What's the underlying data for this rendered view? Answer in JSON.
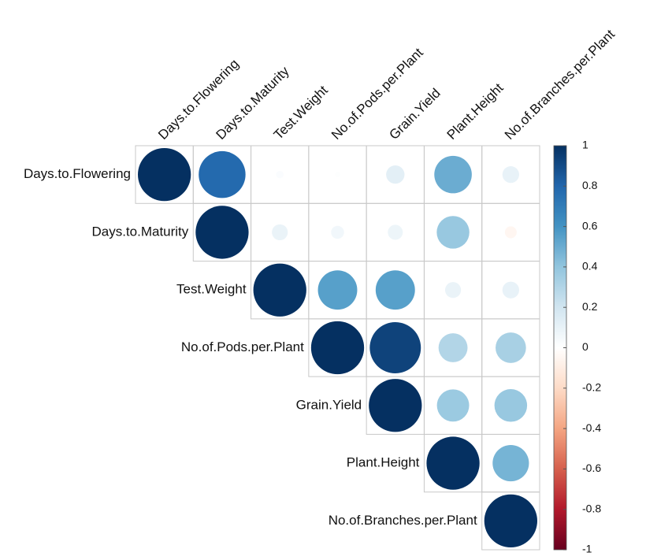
{
  "chart_data": {
    "type": "corrplot",
    "variables": [
      "Days.to.Flowering",
      "Days.to.Maturity",
      "Test.Weight",
      "No.of.Pods.per.Plant",
      "Grain.Yield",
      "Plant.Height",
      "No.of.Branches.per.Plant"
    ],
    "values": [
      [
        1,
        0.78,
        0.02,
        0.01,
        0.12,
        0.5,
        0.1
      ],
      [
        null,
        1,
        0.09,
        0.06,
        0.08,
        0.38,
        -0.05
      ],
      [
        null,
        null,
        1,
        0.55,
        0.55,
        0.09,
        0.1
      ],
      [
        null,
        null,
        null,
        1,
        0.93,
        0.3,
        0.33
      ],
      [
        null,
        null,
        null,
        null,
        1,
        0.37,
        0.38
      ],
      [
        null,
        null,
        null,
        null,
        null,
        1,
        0.47
      ],
      [
        null,
        null,
        null,
        null,
        null,
        null,
        1
      ]
    ],
    "colorbar_lim": [
      -1,
      1
    ],
    "colorbar_ticks": [
      1,
      0.8,
      0.6,
      0.4,
      0.2,
      0,
      -0.2,
      -0.4,
      -0.6,
      -0.8,
      -1
    ],
    "colors": [
      "#67001F",
      "#B2182B",
      "#D6604D",
      "#F4A582",
      "#FDDBC7",
      "#FFFFFF",
      "#D1E5F0",
      "#92C5DE",
      "#4393C3",
      "#2166AC",
      "#053061"
    ]
  }
}
